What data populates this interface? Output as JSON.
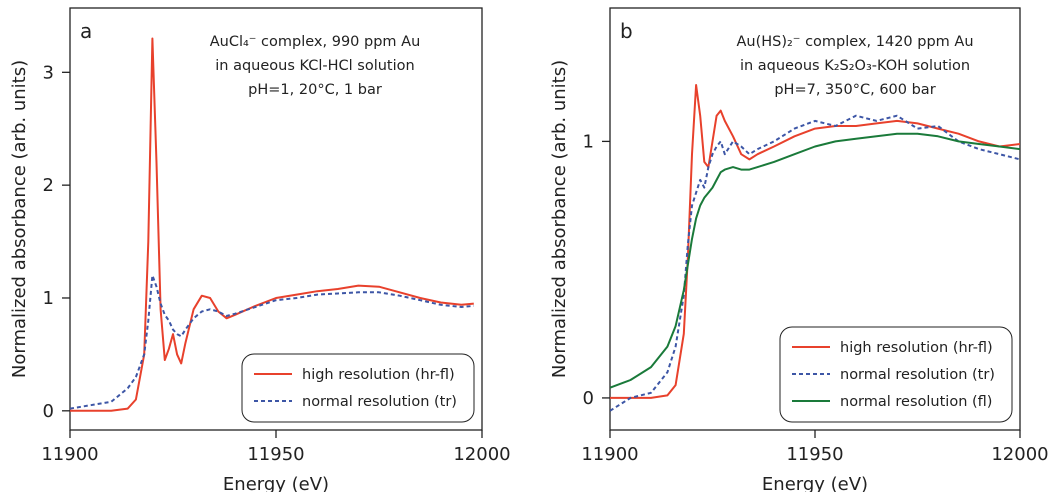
{
  "chart_data": [
    {
      "type": "line",
      "label": "a",
      "annotations": [
        "AuCl₄⁻ complex, 990 ppm Au",
        "in aqueous KCl-HCl solution",
        "pH=1, 20°C, 1 bar"
      ],
      "x_label": "Energy (eV)",
      "y_label": "Normalized absorbance (arb. units)",
      "xlim": [
        11900,
        12000
      ],
      "xticks": [
        11900,
        11950,
        12000
      ],
      "ylim": [
        -0.17,
        3.57
      ],
      "yticks": [
        0,
        1,
        2,
        3
      ],
      "legend": "lower right",
      "x": [
        11900,
        11910,
        11914,
        11916,
        11918,
        11919,
        11920,
        11921,
        11922,
        11923,
        11924,
        11925,
        11926,
        11927,
        11928,
        11930,
        11932,
        11934,
        11936,
        11938,
        11940,
        11945,
        11950,
        11955,
        11960,
        11965,
        11970,
        11975,
        11980,
        11985,
        11990,
        11995,
        11998
      ],
      "series": [
        {
          "name": "high resolution (hr-fl)",
          "color": "#e8412c",
          "dash": false,
          "values": [
            0,
            0,
            0.02,
            0.1,
            0.5,
            1.5,
            3.3,
            2.2,
            0.9,
            0.45,
            0.55,
            0.68,
            0.5,
            0.42,
            0.6,
            0.9,
            1.02,
            1.0,
            0.88,
            0.82,
            0.85,
            0.93,
            1.0,
            1.03,
            1.06,
            1.08,
            1.11,
            1.1,
            1.05,
            1.0,
            0.96,
            0.94,
            0.95
          ]
        },
        {
          "name": "normal resolution (tr)",
          "color": "#3d56a6",
          "dash": true,
          "values": [
            0.02,
            0.08,
            0.2,
            0.3,
            0.5,
            0.8,
            1.2,
            1.1,
            0.95,
            0.85,
            0.8,
            0.72,
            0.68,
            0.66,
            0.72,
            0.82,
            0.88,
            0.9,
            0.88,
            0.84,
            0.86,
            0.92,
            0.98,
            1.0,
            1.03,
            1.04,
            1.05,
            1.05,
            1.02,
            0.98,
            0.94,
            0.92,
            0.93
          ]
        }
      ]
    },
    {
      "type": "line",
      "label": "b",
      "annotations": [
        "Au(HS)₂⁻ complex, 1420 ppm Au",
        "in aqueous K₂S₂O₃-KOH solution",
        "pH=7, 350°C, 600 bar"
      ],
      "x_label": "Energy (eV)",
      "y_label": "Normalized absorbance (arb. units)",
      "xlim": [
        11900,
        12000
      ],
      "xticks": [
        11900,
        11950,
        12000
      ],
      "ylim": [
        -0.125,
        1.52
      ],
      "yticks": [
        0,
        1
      ],
      "legend": "lower right",
      "x": [
        11900,
        11905,
        11910,
        11914,
        11916,
        11918,
        11919,
        11920,
        11921,
        11922,
        11923,
        11924,
        11925,
        11926,
        11927,
        11928,
        11930,
        11932,
        11934,
        11936,
        11940,
        11945,
        11950,
        11955,
        11960,
        11965,
        11970,
        11975,
        11980,
        11985,
        11990,
        11995,
        12000
      ],
      "series": [
        {
          "name": "high resolution (hr-fl)",
          "color": "#e8412c",
          "dash": false,
          "values": [
            0,
            0,
            0,
            0.01,
            0.05,
            0.25,
            0.55,
            0.95,
            1.22,
            1.1,
            0.92,
            0.9,
            1.0,
            1.1,
            1.12,
            1.08,
            1.02,
            0.95,
            0.93,
            0.95,
            0.98,
            1.02,
            1.05,
            1.06,
            1.06,
            1.07,
            1.08,
            1.07,
            1.05,
            1.03,
            1.0,
            0.98,
            0.99
          ]
        },
        {
          "name": "normal resolution (tr)",
          "color": "#3d56a6",
          "dash": true,
          "values": [
            -0.05,
            0.0,
            0.02,
            0.1,
            0.2,
            0.4,
            0.6,
            0.75,
            0.8,
            0.85,
            0.82,
            0.9,
            0.95,
            0.98,
            1.0,
            0.95,
            1.0,
            0.98,
            0.95,
            0.97,
            1.0,
            1.05,
            1.08,
            1.06,
            1.1,
            1.08,
            1.1,
            1.05,
            1.06,
            1.0,
            0.97,
            0.95,
            0.93
          ]
        },
        {
          "name": "normal resolution (fl)",
          "color": "#1a7a3a",
          "dash": false,
          "values": [
            0.04,
            0.07,
            0.12,
            0.2,
            0.28,
            0.42,
            0.52,
            0.62,
            0.7,
            0.75,
            0.78,
            0.8,
            0.82,
            0.85,
            0.88,
            0.89,
            0.9,
            0.89,
            0.89,
            0.9,
            0.92,
            0.95,
            0.98,
            1.0,
            1.01,
            1.02,
            1.03,
            1.03,
            1.02,
            1.0,
            0.99,
            0.98,
            0.97
          ]
        }
      ]
    }
  ]
}
